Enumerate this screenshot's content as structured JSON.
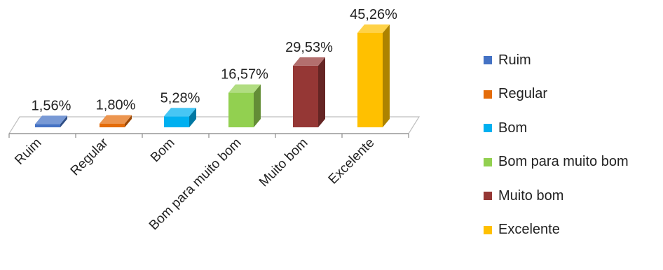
{
  "chart_data": {
    "type": "bar",
    "categories": [
      "Ruim",
      "Regular",
      "Bom",
      "Bom para muito bom",
      "Muito bom",
      "Excelente"
    ],
    "values": [
      1.56,
      1.8,
      5.28,
      16.57,
      29.53,
      45.26
    ],
    "data_labels": [
      "1,56%",
      "1,80%",
      "5,28%",
      "16,57%",
      "29,53%",
      "45,26%"
    ],
    "colors": [
      "#4472C4",
      "#E46C0A",
      "#00B0F0",
      "#92D050",
      "#953735",
      "#FFC000"
    ],
    "legend": [
      "Ruim",
      "Regular",
      "Bom",
      "Bom para muito bom",
      "Muito bom",
      "Excelente"
    ],
    "legend_position": "right",
    "ylim": [
      0,
      45.26
    ],
    "grid": false,
    "style": "3d-column",
    "title": "",
    "xlabel": "",
    "ylabel": ""
  }
}
